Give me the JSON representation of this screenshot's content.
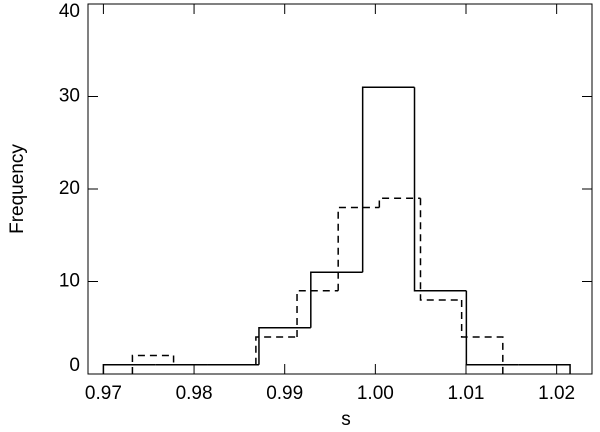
{
  "chart_data": {
    "type": "histogram",
    "xlabel": "s",
    "ylabel": "Frequency",
    "xlim": [
      0.9683,
      1.0239
    ],
    "ylim": [
      0,
      40
    ],
    "xticks": [
      0.97,
      0.98,
      0.99,
      {
        "value": 1,
        "label": "1.00"
      },
      1.01,
      1.02
    ],
    "yticks": [
      0,
      10,
      20,
      30,
      40
    ],
    "series": [
      {
        "color": "#000000",
        "line_style": "solid",
        "bins": [
          0.97,
          0.97572,
          0.98144,
          0.98716,
          0.99288,
          0.9986,
          1.00432,
          1.01004,
          1.01576,
          1.02148
        ],
        "values": [
          1,
          1,
          1,
          5,
          11,
          31,
          9,
          1,
          1
        ]
      },
      {
        "color": "#000000",
        "line_style": "dashed",
        "bins": [
          0.9732,
          0.97774,
          0.98228,
          0.98682,
          0.99136,
          0.9959,
          1.00044,
          1.00498,
          1.00952,
          1.01406
        ],
        "values": [
          2,
          1,
          1,
          4,
          9,
          18,
          19,
          8,
          4
        ]
      }
    ]
  }
}
